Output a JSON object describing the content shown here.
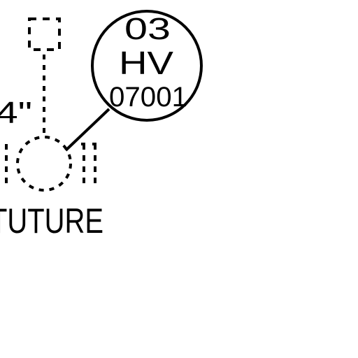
{
  "tag": {
    "line1": "03",
    "line2": "HV",
    "line3": "07001"
  },
  "dimension_text": "4\"",
  "label": "TUTURE",
  "colors": {
    "ink": "#000000",
    "background": "#ffffff"
  }
}
